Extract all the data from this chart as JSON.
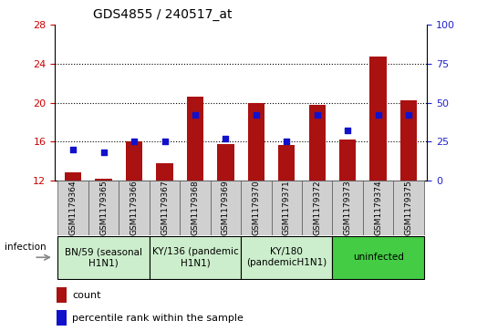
{
  "title": "GDS4855 / 240517_at",
  "samples": [
    "GSM1179364",
    "GSM1179365",
    "GSM1179366",
    "GSM1179367",
    "GSM1179368",
    "GSM1179369",
    "GSM1179370",
    "GSM1179371",
    "GSM1179372",
    "GSM1179373",
    "GSM1179374",
    "GSM1179375"
  ],
  "counts": [
    12.8,
    12.2,
    16.0,
    13.8,
    20.6,
    15.7,
    20.0,
    15.6,
    19.8,
    16.2,
    24.7,
    20.2
  ],
  "percentile_values": [
    20,
    18,
    25,
    25,
    42,
    27,
    42,
    25,
    42,
    32,
    42,
    42
  ],
  "ylim_left": [
    12,
    28
  ],
  "ylim_right": [
    0,
    100
  ],
  "yticks_left": [
    12,
    16,
    20,
    24,
    28
  ],
  "yticks_right": [
    0,
    25,
    50,
    75,
    100
  ],
  "hlines": [
    16,
    20,
    24
  ],
  "bar_color": "#AA1111",
  "dot_color": "#1111CC",
  "group_defs": [
    {
      "label": "BN/59 (seasonal\nH1N1)",
      "start": 0,
      "end": 3,
      "bg": "#cceecc"
    },
    {
      "label": "KY/136 (pandemic\nH1N1)",
      "start": 3,
      "end": 6,
      "bg": "#cceecc"
    },
    {
      "label": "KY/180\n(pandemicH1N1)",
      "start": 6,
      "end": 9,
      "bg": "#cceecc"
    },
    {
      "label": "uninfected",
      "start": 9,
      "end": 12,
      "bg": "#44cc44"
    }
  ],
  "sample_box_bg": "#d0d0d0",
  "infection_label": "infection",
  "legend_count": "count",
  "legend_percentile": "percentile rank within the sample",
  "tick_color_left": "#CC0000",
  "tick_color_right": "#2222CC",
  "title_fontsize": 10,
  "axis_fontsize": 8,
  "sample_fontsize": 6.5,
  "group_fontsize": 7.5
}
